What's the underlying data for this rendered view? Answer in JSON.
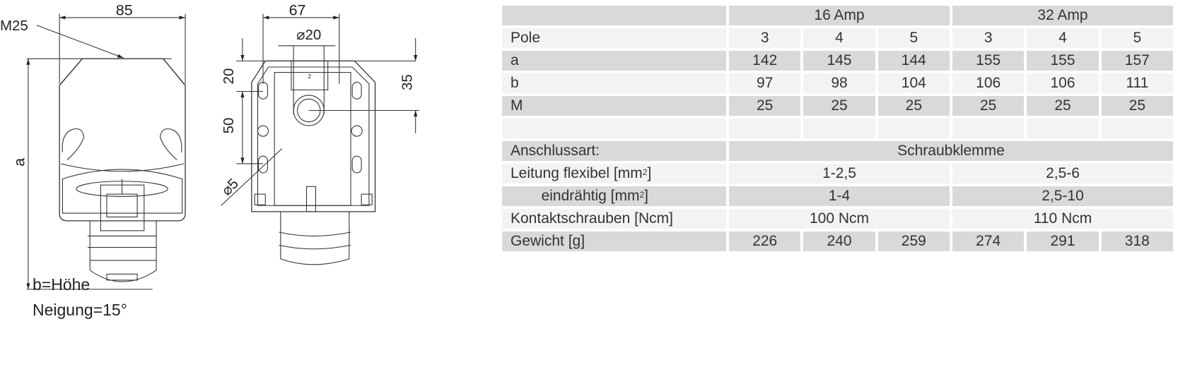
{
  "drawing": {
    "left_view": {
      "width_dim": "85",
      "thread": "M25",
      "height_dim": "a"
    },
    "right_view": {
      "width_dim": "67",
      "hole_dim": "⌀20",
      "top_offset": "20",
      "hole_spacing": "50",
      "hole_center": "35",
      "mount_hole": "⌀5",
      "part_mark": "2"
    },
    "notes": [
      "b=Höhe",
      "Neigung=15°"
    ]
  },
  "table": {
    "groups": [
      "16 Amp",
      "32 Amp"
    ],
    "rows": [
      {
        "label": "Pole",
        "values": [
          "3",
          "4",
          "5",
          "3",
          "4",
          "5"
        ]
      },
      {
        "label": "a",
        "values": [
          "142",
          "145",
          "144",
          "155",
          "155",
          "157"
        ]
      },
      {
        "label": "b",
        "values": [
          "97",
          "98",
          "104",
          "106",
          "106",
          "111"
        ]
      },
      {
        "label": "M",
        "values": [
          "25",
          "25",
          "25",
          "25",
          "25",
          "25"
        ]
      }
    ],
    "connection": {
      "label": "Anschlussart:",
      "value": "Schraubklemme"
    },
    "flexible": {
      "label": "Leitung  flexibel [mm",
      "sup": "2",
      "close": "]",
      "values": [
        "1-2,5",
        "2,5-6"
      ]
    },
    "solid": {
      "label": "eindrähtig [mm",
      "sup": "2",
      "close": "]",
      "values": [
        "1-4",
        "2,5-10"
      ]
    },
    "torque": {
      "label": "Kontaktschrauben [Ncm]",
      "values": [
        "100 Ncm",
        "110 Ncm"
      ]
    },
    "weight": {
      "label": "Gewicht [g]",
      "values": [
        "226",
        "240",
        "259",
        "274",
        "291",
        "318"
      ]
    }
  },
  "colors": {
    "row_dark": "#d9d9db",
    "row_light": "#f3f3f3",
    "text": "#333333"
  }
}
